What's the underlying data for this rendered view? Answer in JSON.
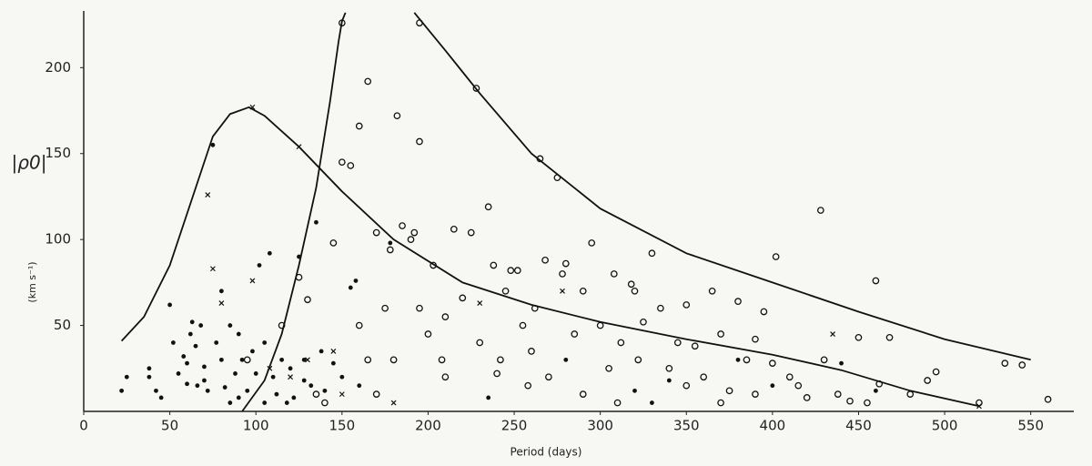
{
  "chart_data": {
    "type": "scatter",
    "x_label": "Period (days)",
    "y_label": "|ρ0|",
    "y_unit": "(km s⁻¹)",
    "xlim": [
      0,
      575
    ],
    "ylim": [
      0,
      233
    ],
    "xticks": [
      0,
      50,
      100,
      150,
      200,
      250,
      300,
      350,
      400,
      450,
      500,
      550
    ],
    "yticks": [
      50,
      100,
      150,
      200
    ],
    "color": "#111111",
    "series": [
      {
        "marker": "dot",
        "x": [
          22,
          25,
          38,
          38,
          42,
          45,
          50,
          52,
          55,
          58,
          60,
          62,
          63,
          65,
          66,
          68,
          70,
          72,
          75,
          77,
          80,
          80,
          82,
          85,
          88,
          90,
          92,
          95,
          98,
          100,
          102,
          105,
          108,
          110,
          112,
          115,
          118,
          120,
          122,
          125,
          128,
          132,
          135,
          138,
          140,
          145,
          150,
          155,
          158,
          160,
          178,
          235,
          280,
          320,
          330,
          340,
          380,
          400,
          440,
          460,
          90,
          60,
          70,
          85,
          105,
          128
        ],
        "values": [
          12,
          20,
          25,
          20,
          12,
          8,
          62,
          40,
          22,
          32,
          16,
          45,
          52,
          38,
          15,
          50,
          26,
          12,
          155,
          40,
          70,
          30,
          14,
          50,
          22,
          8,
          30,
          12,
          35,
          22,
          85,
          40,
          92,
          20,
          10,
          30,
          5,
          25,
          8,
          90,
          18,
          15,
          110,
          35,
          12,
          28,
          20,
          72,
          76,
          15,
          98,
          8,
          30,
          12,
          5,
          18,
          30,
          15,
          28,
          12,
          45,
          28,
          18,
          5,
          5,
          30
        ]
      },
      {
        "marker": "circle",
        "x": [
          95,
          115,
          125,
          145,
          150,
          155,
          160,
          165,
          160,
          165,
          170,
          175,
          178,
          182,
          185,
          190,
          192,
          195,
          195,
          200,
          203,
          208,
          210,
          215,
          220,
          225,
          228,
          230,
          235,
          238,
          242,
          245,
          248,
          252,
          255,
          258,
          262,
          265,
          268,
          270,
          275,
          278,
          280,
          285,
          290,
          295,
          300,
          305,
          308,
          312,
          318,
          320,
          322,
          325,
          330,
          335,
          340,
          345,
          350,
          355,
          360,
          365,
          370,
          375,
          380,
          385,
          390,
          395,
          400,
          402,
          410,
          415,
          420,
          428,
          430,
          438,
          445,
          450,
          455,
          460,
          462,
          468,
          480,
          490,
          495,
          520,
          535,
          545,
          560,
          180,
          210,
          240,
          260,
          290,
          310,
          350,
          370,
          390,
          150,
          195,
          170,
          140,
          130,
          135
        ],
        "values": [
          30,
          50,
          78,
          98,
          145,
          143,
          166,
          192,
          50,
          30,
          104,
          60,
          94,
          172,
          108,
          100,
          104,
          157,
          60,
          45,
          85,
          30,
          20,
          106,
          66,
          104,
          188,
          40,
          119,
          85,
          30,
          70,
          82,
          82,
          50,
          15,
          60,
          147,
          88,
          20,
          136,
          80,
          86,
          45,
          70,
          98,
          50,
          25,
          80,
          40,
          74,
          70,
          30,
          52,
          92,
          60,
          25,
          40,
          62,
          38,
          20,
          70,
          45,
          12,
          64,
          30,
          42,
          58,
          28,
          90,
          20,
          15,
          8,
          117,
          30,
          10,
          6,
          43,
          5,
          76,
          16,
          43,
          10,
          18,
          23,
          5,
          28,
          27,
          7,
          30,
          55,
          22,
          35,
          10,
          5,
          15,
          5,
          10,
          226,
          226,
          10,
          5,
          65,
          10
        ]
      },
      {
        "marker": "cross",
        "x": [
          72,
          75,
          80,
          98,
          98,
          125,
          120,
          130,
          108,
          150,
          180,
          230,
          278,
          435,
          520,
          145
        ],
        "values": [
          126,
          83,
          63,
          76,
          177,
          154,
          20,
          30,
          25,
          10,
          5,
          63,
          70,
          45,
          3,
          35
        ]
      }
    ],
    "curves": [
      {
        "x": [
          22,
          35,
          50,
          65,
          75,
          85,
          96,
          105,
          125,
          150,
          180,
          220,
          260,
          300,
          350,
          400,
          440,
          480,
          520
        ],
        "values": [
          41,
          55,
          85,
          130,
          160,
          173,
          177,
          172,
          154,
          128,
          100,
          75,
          62,
          52,
          42,
          33,
          24,
          12,
          3
        ]
      },
      {
        "x": [
          92,
          105,
          115,
          125,
          135,
          143,
          148,
          150,
          152
        ],
        "values": [
          0,
          18,
          45,
          85,
          130,
          180,
          215,
          227,
          232
        ]
      },
      {
        "x": [
          192,
          210,
          230,
          260,
          300,
          350,
          400,
          450,
          500,
          550
        ],
        "values": [
          232,
          210,
          185,
          150,
          118,
          92,
          75,
          58,
          42,
          30
        ]
      }
    ]
  }
}
